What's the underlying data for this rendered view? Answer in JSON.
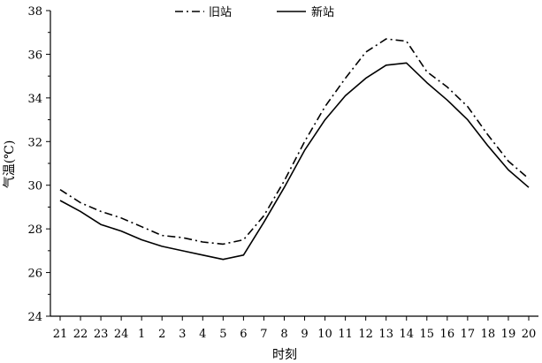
{
  "chart_data": {
    "type": "line",
    "title": "",
    "xlabel": "时刻",
    "ylabel": "气温(℃)",
    "categories": [
      "21",
      "22",
      "23",
      "24",
      "1",
      "2",
      "3",
      "4",
      "5",
      "6",
      "7",
      "8",
      "9",
      "10",
      "11",
      "12",
      "13",
      "14",
      "15",
      "16",
      "17",
      "18",
      "19",
      "20"
    ],
    "ylim": [
      24,
      38
    ],
    "yticks": [
      24,
      26,
      28,
      30,
      32,
      34,
      36,
      38
    ],
    "grid": false,
    "legend_position": "top-center",
    "series": [
      {
        "name": "旧站",
        "line_style": "dash-dot",
        "color": "#000000",
        "values": [
          29.8,
          29.2,
          28.8,
          28.5,
          28.1,
          27.7,
          27.6,
          27.4,
          27.3,
          27.5,
          28.6,
          30.2,
          32.0,
          33.6,
          34.9,
          36.1,
          36.7,
          36.6,
          35.2,
          34.5,
          33.6,
          32.3,
          31.1,
          30.3
        ]
      },
      {
        "name": "新站",
        "line_style": "solid",
        "color": "#000000",
        "values": [
          29.3,
          28.8,
          28.2,
          27.9,
          27.5,
          27.2,
          27.0,
          26.8,
          26.6,
          26.8,
          28.3,
          29.9,
          31.6,
          33.0,
          34.1,
          34.9,
          35.5,
          35.6,
          34.7,
          33.9,
          33.0,
          31.8,
          30.7,
          29.9
        ]
      }
    ]
  }
}
